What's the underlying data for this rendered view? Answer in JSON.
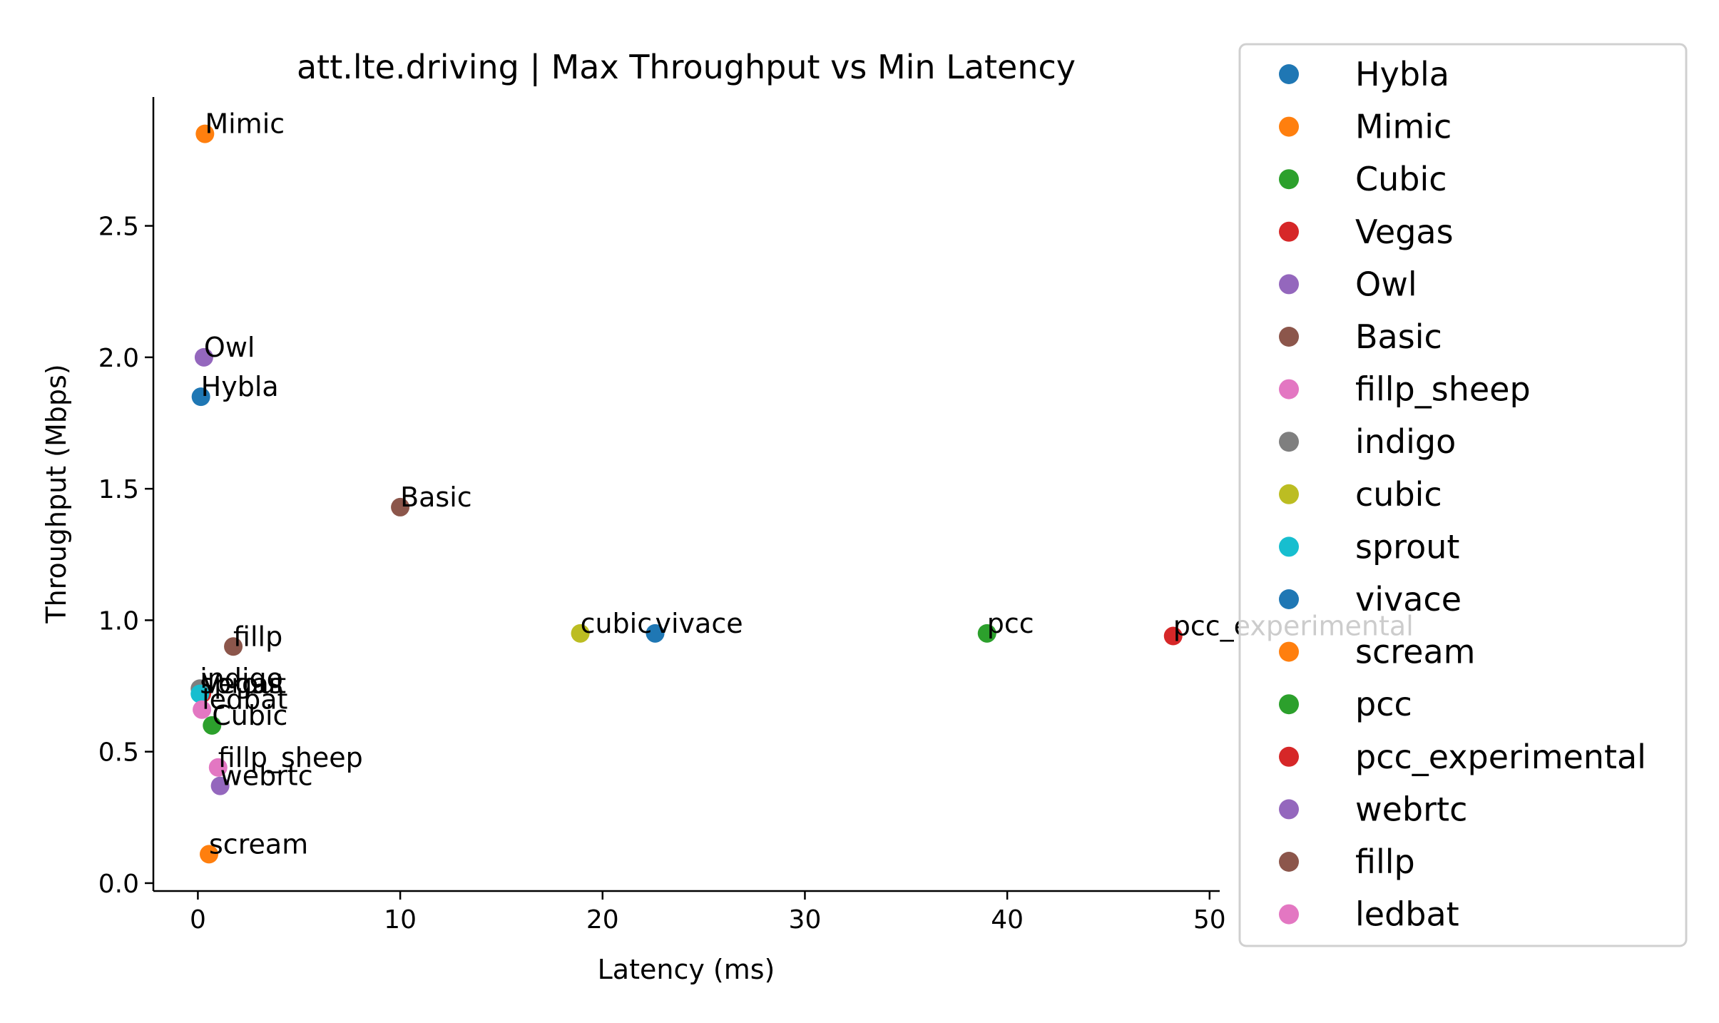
{
  "chart_data": {
    "type": "scatter",
    "title": "att.lte.driving | Max Throughput vs Min Latency",
    "xlabel": "Latency (ms)",
    "ylabel": "Throughput (Mbps)",
    "xlim": [
      -2.2,
      50.5
    ],
    "ylim": [
      -0.03,
      2.99
    ],
    "xticks": [
      0,
      10,
      20,
      30,
      40,
      50
    ],
    "yticks": [
      0.0,
      0.5,
      1.0,
      1.5,
      2.0,
      2.5
    ],
    "xtick_labels": [
      "0",
      "10",
      "20",
      "30",
      "40",
      "50"
    ],
    "ytick_labels": [
      "0.0",
      "0.5",
      "1.0",
      "1.5",
      "2.0",
      "2.5"
    ],
    "grid": false,
    "legend_placement": "outside-right",
    "series": [
      {
        "name": "Hybla",
        "x": 0.15,
        "y": 1.85,
        "color": "#1f77b4"
      },
      {
        "name": "Mimic",
        "x": 0.35,
        "y": 2.85,
        "color": "#ff7f0e"
      },
      {
        "name": "Cubic",
        "x": 0.7,
        "y": 0.6,
        "color": "#2ca02c"
      },
      {
        "name": "Vegas",
        "x": 0.2,
        "y": 0.72,
        "color": "#d62728"
      },
      {
        "name": "Owl",
        "x": 0.3,
        "y": 2.0,
        "color": "#9467bd"
      },
      {
        "name": "Basic",
        "x": 10.0,
        "y": 1.43,
        "color": "#8c564b"
      },
      {
        "name": "fillp_sheep",
        "x": 1.0,
        "y": 0.44,
        "color": "#e377c2"
      },
      {
        "name": "indigo",
        "x": 0.1,
        "y": 0.74,
        "color": "#7f7f7f"
      },
      {
        "name": "cubic",
        "x": 18.9,
        "y": 0.95,
        "color": "#bcbd22"
      },
      {
        "name": "sprout",
        "x": 0.1,
        "y": 0.72,
        "color": "#17becf"
      },
      {
        "name": "vivace",
        "x": 22.6,
        "y": 0.95,
        "color": "#1f77b4"
      },
      {
        "name": "scream",
        "x": 0.55,
        "y": 0.11,
        "color": "#ff7f0e"
      },
      {
        "name": "pcc",
        "x": 39.0,
        "y": 0.95,
        "color": "#2ca02c"
      },
      {
        "name": "pcc_experimental",
        "x": 48.2,
        "y": 0.94,
        "color": "#d62728"
      },
      {
        "name": "webrtc",
        "x": 1.1,
        "y": 0.37,
        "color": "#9467bd"
      },
      {
        "name": "fillp",
        "x": 1.75,
        "y": 0.9,
        "color": "#8c564b"
      },
      {
        "name": "ledbat",
        "x": 0.2,
        "y": 0.66,
        "color": "#e377c2"
      }
    ]
  }
}
